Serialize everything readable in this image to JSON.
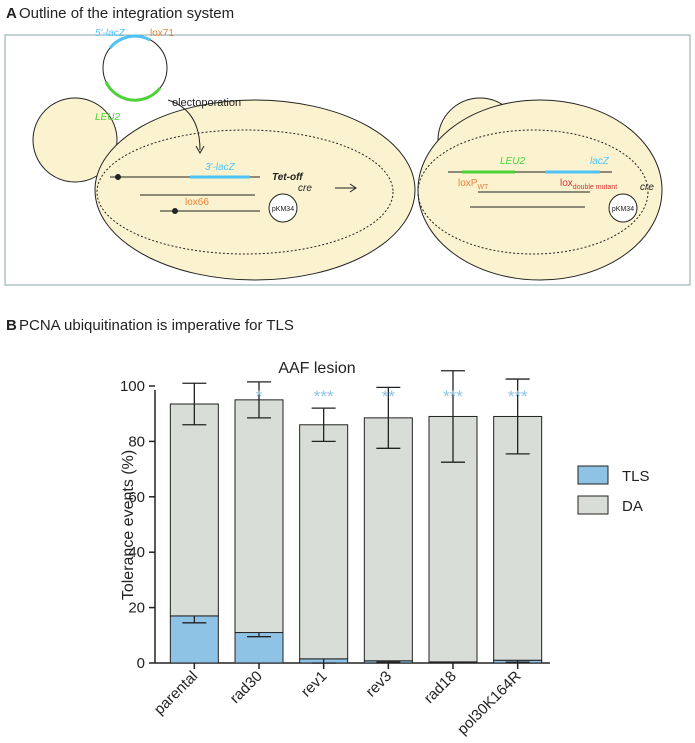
{
  "panel_a": {
    "letter": "A",
    "title": "Outline of the integration system",
    "plasmid_lacz": "5'-lacZ",
    "plasmid_lox": "lox71",
    "plasmid_leu": "LEU2",
    "transfer": "electoporation",
    "genome_lacz": "3'-lacZ",
    "genome_lox": "lox66",
    "promoter": "Tet-off",
    "cre_left": "cre",
    "plasmid_left": "pKM34",
    "result_leu": "LEU2",
    "result_lacz": "lacZ",
    "result_loxp": "loxP",
    "result_loxp_sub": "WT",
    "result_lox": "lox",
    "result_lox_sub": "double mutant",
    "cre_right": "cre",
    "plasmid_right": "pKM34"
  },
  "chart_data": {
    "type": "stacked_bar",
    "letter": "B",
    "heading": "PCNA ubiquitination is imperative for TLS",
    "title": "AAF lesion",
    "ylabel": "Tolerance events (%)",
    "categories": [
      "parental",
      "rad30",
      "rev1",
      "rev3",
      "rad18",
      "pol30K164R"
    ],
    "series": [
      {
        "name": "TLS",
        "color": "#8ec3e6",
        "values": [
          17,
          11,
          1.5,
          0.8,
          0.4,
          1
        ],
        "errors": [
          2.5,
          1.5,
          1.5,
          0.5,
          0.3,
          0.7
        ]
      },
      {
        "name": "DA",
        "color": "#d9ddd7",
        "values": [
          76.5,
          84,
          84.5,
          87.7,
          88.6,
          88
        ],
        "errors": [
          7.5,
          6.5,
          6,
          11,
          16.5,
          13.5
        ]
      }
    ],
    "significance": [
      null,
      "*",
      "***",
      "**",
      "***",
      "***"
    ],
    "significance_color": "#8ec3e6",
    "ylim": [
      0,
      100
    ],
    "yticks": [
      0,
      20,
      40,
      60,
      80,
      100
    ],
    "legend": "right"
  }
}
